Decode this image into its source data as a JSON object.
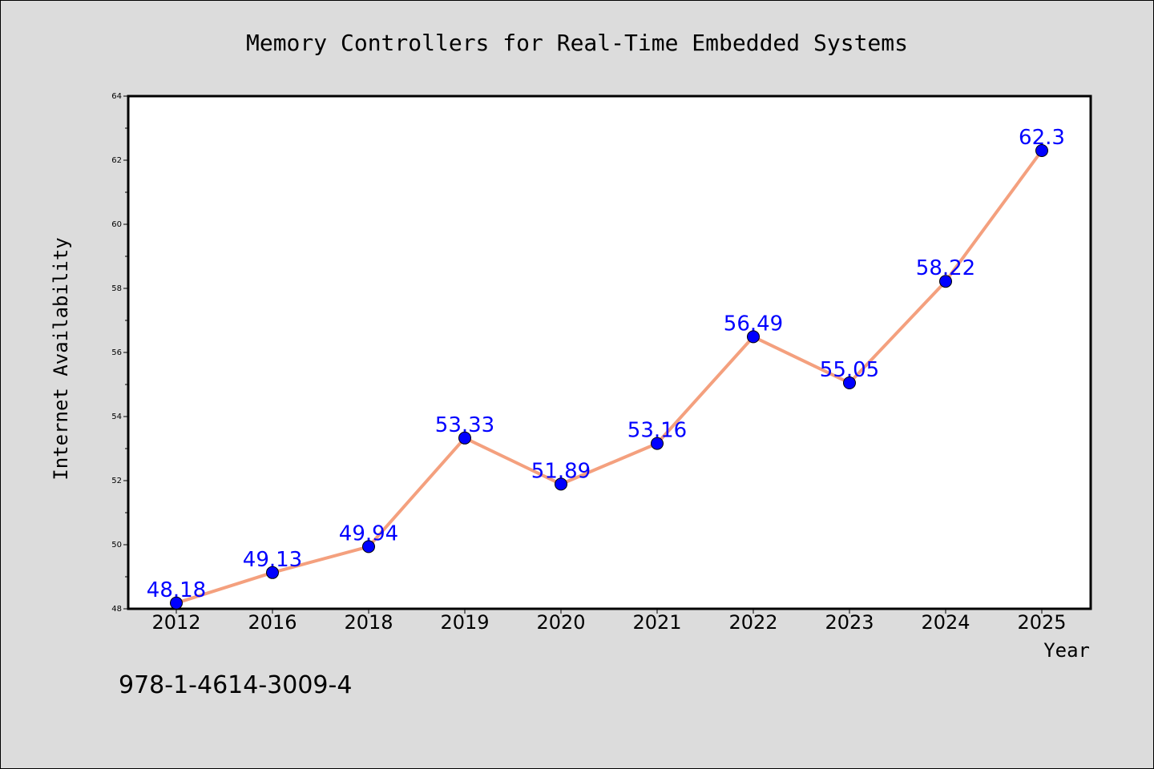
{
  "chart_data": {
    "type": "line",
    "title": "Memory Controllers for Real-Time Embedded Systems",
    "xlabel": "Year",
    "ylabel": "Internet Availability",
    "categories": [
      "2012",
      "2016",
      "2018",
      "2019",
      "2020",
      "2021",
      "2022",
      "2023",
      "2024",
      "2025"
    ],
    "values": [
      48.18,
      49.13,
      49.94,
      53.33,
      51.89,
      53.16,
      56.49,
      55.05,
      58.22,
      62.3
    ],
    "data_labels": [
      "48.18",
      "49.13",
      "49.94",
      "53.33",
      "51.89",
      "53.16",
      "56.49",
      "55.05",
      "58.22",
      "62.3"
    ],
    "ylim": [
      48,
      64
    ],
    "yticks": [
      48,
      50,
      52,
      54,
      56,
      58,
      60,
      62,
      64
    ],
    "grid": false,
    "line_color": "#f4a07e",
    "marker_color": "#0000ff",
    "label_color": "#0000ff"
  },
  "footer_text": "978-1-4614-3009-4"
}
